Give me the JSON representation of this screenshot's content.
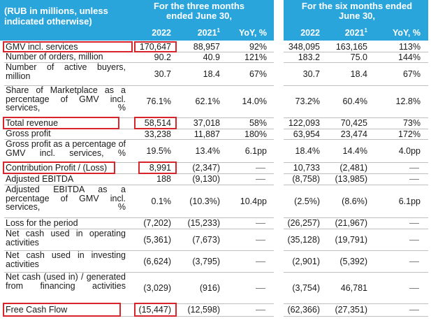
{
  "header": {
    "label": "(RUB in millions, unless indicated otherwise)",
    "three_months": "For the three months ended June 30,",
    "six_months": "For the six months ended June 30,",
    "col_2022": "2022",
    "col_2021": "2021",
    "col_2021_sup": "1",
    "col_yoy": "YoY, %"
  },
  "rows": [
    {
      "label": "GMV incl. services",
      "q22": "170,647",
      "q21": "88,957",
      "qy": "92%",
      "h22": "348,095",
      "h21": "163,165",
      "hy": "113%"
    },
    {
      "label": "Number of orders, million",
      "q22": "90.2",
      "q21": "40.9",
      "qy": "121%",
      "h22": "183.2",
      "h21": "75.0",
      "hy": "144%"
    },
    {
      "label": "Number of active buyers, million",
      "q22": "30.7",
      "q21": "18.4",
      "qy": "67%",
      "h22": "30.7",
      "h21": "18.4",
      "hy": "67%"
    },
    {
      "label": "Share of Marketplace as a percentage of GMV incl. services, %",
      "q22": "76.1%",
      "q21": "62.1%",
      "qy": "14.0%",
      "h22": "73.2%",
      "h21": "60.4%",
      "hy": "12.8%"
    },
    {
      "label": "Total revenue",
      "q22": "58,514",
      "q21": "37,018",
      "qy": "58%",
      "h22": "122,093",
      "h21": "70,425",
      "hy": "73%"
    },
    {
      "label": "Gross profit",
      "q22": "33,238",
      "q21": "11,887",
      "qy": "180%",
      "h22": "63,954",
      "h21": "23,474",
      "hy": "172%"
    },
    {
      "label": "Gross profit as a percentage of GMV incl. services, %",
      "q22": "19.5%",
      "q21": "13.4%",
      "qy": "6.1pp",
      "h22": "18.4%",
      "h21": "14.4%",
      "hy": "4.0pp"
    },
    {
      "label": "Contribution Profit / (Loss)",
      "q22": "8,991",
      "q21": "(2,347)",
      "qy": "",
      "h22": "10,733",
      "h21": "(2,481)",
      "hy": ""
    },
    {
      "label": "Adjusted EBITDA",
      "q22": "188",
      "q21": "(9,130)",
      "qy": "",
      "h22": "(8,758)",
      "h21": "(13,985)",
      "hy": ""
    },
    {
      "label": "Adjusted EBITDA as a percentage of GMV incl. services, %",
      "q22": "0.1%",
      "q21": "(10.3%)",
      "qy": "10.4pp",
      "h22": "(2.5%)",
      "h21": "(8.6%)",
      "hy": "6.1pp"
    },
    {
      "label": "Loss for the period",
      "q22": "(7,202)",
      "q21": "(15,233)",
      "qy": "",
      "h22": "(26,257)",
      "h21": "(21,967)",
      "hy": ""
    },
    {
      "label": "Net cash used in operating activities",
      "q22": "(5,361)",
      "q21": "(7,673)",
      "qy": "",
      "h22": "(35,128)",
      "h21": "(19,791)",
      "hy": ""
    },
    {
      "label": "Net cash used in investing activities",
      "q22": "(6,624)",
      "q21": "(3,795)",
      "qy": "",
      "h22": "(2,901)",
      "h21": "(5,392)",
      "hy": ""
    },
    {
      "label": "Net cash (used in) / generated from financing activities",
      "q22": "(3,029)",
      "q21": "(916)",
      "qy": "",
      "h22": "(3,754)",
      "h21": "46,781",
      "hy": ""
    },
    {
      "label": "Free Cash Flow",
      "q22": "(15,447)",
      "q21": "(12,598)",
      "qy": "",
      "h22": "(62,366)",
      "h21": "(27,351)",
      "hy": ""
    }
  ],
  "highlight_color": "#d8252c",
  "header_color": "#2aa5dc"
}
